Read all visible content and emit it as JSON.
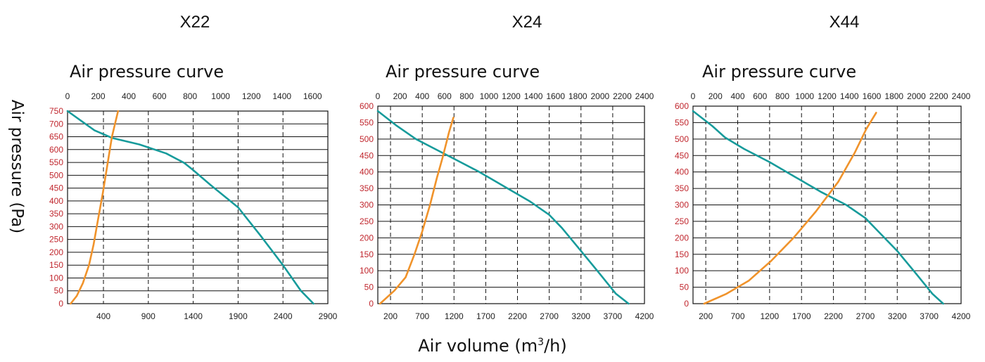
{
  "colors": {
    "axis": "#111111",
    "y_tick": "#c0262d",
    "tick": "#222222",
    "pressure_curve": "#179b9b",
    "efficiency_curve": "#f0932b"
  },
  "axis_labels": {
    "y": "Air pressure (Pa)",
    "x_prefix": "Air volume (m",
    "x_sup": "3",
    "x_suffix": "/h)"
  },
  "chart_data": [
    {
      "type": "line",
      "model": "X22",
      "title": "Air pressure curve",
      "ylabel": "Air pressure (Pa)",
      "xlabel": "Air volume (m³/h)",
      "ylim": [
        0,
        750
      ],
      "yticks": [
        0,
        50,
        100,
        150,
        200,
        250,
        300,
        350,
        400,
        450,
        500,
        550,
        600,
        650,
        700,
        750
      ],
      "xlim_bottom": [
        0,
        2900
      ],
      "xticks_bottom": [
        400,
        900,
        1400,
        1900,
        2400,
        2900
      ],
      "xlim_top": [
        0,
        1700
      ],
      "xticks_top": [
        0,
        200,
        400,
        600,
        800,
        1000,
        1200,
        1400,
        1600
      ],
      "grid": true,
      "series": [
        {
          "axis": "bottom",
          "color": "pressure_curve",
          "points": [
            [
              0,
              750
            ],
            [
              200,
              700
            ],
            [
              300,
              675
            ],
            [
              500,
              645
            ],
            [
              800,
              620
            ],
            [
              1100,
              585
            ],
            [
              1300,
              548
            ],
            [
              1400,
              520
            ],
            [
              1600,
              460
            ],
            [
              1900,
              375
            ],
            [
              2150,
              265
            ],
            [
              2400,
              150
            ],
            [
              2600,
              50
            ],
            [
              2740,
              0
            ]
          ]
        },
        {
          "axis": "top",
          "color": "efficiency_curve",
          "points": [
            [
              20,
              0
            ],
            [
              60,
              30
            ],
            [
              100,
              80
            ],
            [
              140,
              150
            ],
            [
              170,
              230
            ],
            [
              200,
              330
            ],
            [
              230,
              430
            ],
            [
              260,
              540
            ],
            [
              290,
              650
            ],
            [
              330,
              750
            ]
          ]
        }
      ]
    },
    {
      "type": "line",
      "model": "X24",
      "title": "Air pressure curve",
      "ylabel": "Air pressure (Pa)",
      "xlabel": "Air volume (m³/h)",
      "ylim": [
        0,
        600
      ],
      "yticks": [
        0,
        50,
        100,
        150,
        200,
        250,
        300,
        350,
        400,
        450,
        500,
        550,
        600
      ],
      "xlim_bottom": [
        0,
        4200
      ],
      "xticks_bottom": [
        200,
        700,
        1200,
        1700,
        2200,
        2700,
        3200,
        3700,
        4200
      ],
      "xlim_top": [
        0,
        2400
      ],
      "xticks_top": [
        0,
        200,
        400,
        600,
        800,
        1000,
        1200,
        1400,
        1600,
        1800,
        2000,
        2200,
        2400
      ],
      "grid": true,
      "series": [
        {
          "axis": "bottom",
          "color": "pressure_curve",
          "points": [
            [
              0,
              585
            ],
            [
              300,
              540
            ],
            [
              600,
              500
            ],
            [
              900,
              470
            ],
            [
              1200,
              440
            ],
            [
              1600,
              400
            ],
            [
              2000,
              355
            ],
            [
              2400,
              310
            ],
            [
              2700,
              270
            ],
            [
              2900,
              230
            ],
            [
              3200,
              160
            ],
            [
              3500,
              90
            ],
            [
              3750,
              30
            ],
            [
              3950,
              0
            ]
          ]
        },
        {
          "axis": "top",
          "color": "efficiency_curve",
          "points": [
            [
              20,
              0
            ],
            [
              150,
              40
            ],
            [
              250,
              80
            ],
            [
              330,
              150
            ],
            [
              400,
              220
            ],
            [
              470,
              300
            ],
            [
              530,
              380
            ],
            [
              580,
              440
            ],
            [
              640,
              520
            ],
            [
              680,
              565
            ]
          ]
        }
      ]
    },
    {
      "type": "line",
      "model": "X44",
      "title": "Air pressure curve",
      "ylabel": "Air pressure (Pa)",
      "xlabel": "Air volume (m³/h)",
      "ylim": [
        0,
        600
      ],
      "yticks": [
        0,
        50,
        100,
        150,
        200,
        250,
        300,
        350,
        400,
        450,
        500,
        550,
        600
      ],
      "xlim_bottom": [
        0,
        4200
      ],
      "xticks_bottom": [
        200,
        700,
        1200,
        1700,
        2200,
        2700,
        3200,
        3700,
        4200
      ],
      "xlim_top": [
        0,
        2400
      ],
      "xticks_top": [
        0,
        200,
        400,
        600,
        800,
        1000,
        1200,
        1400,
        1600,
        1800,
        2000,
        2200,
        2400
      ],
      "grid": true,
      "series": [
        {
          "axis": "bottom",
          "color": "pressure_curve",
          "points": [
            [
              0,
              585
            ],
            [
              300,
              540
            ],
            [
              500,
              505
            ],
            [
              800,
              470
            ],
            [
              1200,
              430
            ],
            [
              1600,
              385
            ],
            [
              2000,
              340
            ],
            [
              2400,
              300
            ],
            [
              2700,
              260
            ],
            [
              2900,
              220
            ],
            [
              3200,
              160
            ],
            [
              3500,
              90
            ],
            [
              3750,
              30
            ],
            [
              3920,
              0
            ]
          ]
        },
        {
          "axis": "top",
          "color": "efficiency_curve",
          "points": [
            [
              100,
              0
            ],
            [
              300,
              30
            ],
            [
              500,
              70
            ],
            [
              700,
              130
            ],
            [
              900,
              200
            ],
            [
              1100,
              280
            ],
            [
              1300,
              370
            ],
            [
              1450,
              460
            ],
            [
              1550,
              530
            ],
            [
              1640,
              580
            ]
          ]
        }
      ]
    }
  ]
}
